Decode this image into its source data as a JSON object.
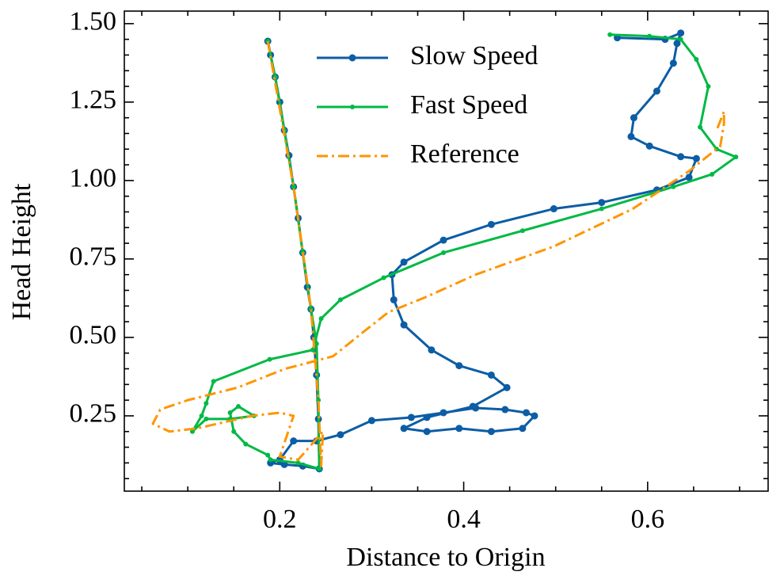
{
  "chart_data": {
    "type": "line",
    "xlabel": "Distance to Origin",
    "ylabel": "Head Height",
    "xlim": [
      0.031,
      0.731
    ],
    "ylim": [
      0.01,
      1.54
    ],
    "xticks": [
      0.2,
      0.4,
      0.6
    ],
    "yticks": [
      0.25,
      {
        "value": 0.5,
        "label": "0.50"
      },
      0.75,
      {
        "value": 1.0,
        "label": "1.00"
      },
      1.25,
      {
        "value": 1.5,
        "label": "1.50"
      }
    ],
    "xminorticks": [
      0.05,
      0.1,
      0.15,
      0.25,
      0.3,
      0.35,
      0.45,
      0.5,
      0.55,
      0.65,
      0.7
    ],
    "yminorticks": [
      0.05,
      0.1,
      0.15,
      0.2,
      0.3,
      0.35,
      0.4,
      0.45,
      0.55,
      0.6,
      0.65,
      0.7,
      0.8,
      0.85,
      0.9,
      0.95,
      1.05,
      1.1,
      1.15,
      1.2,
      1.3,
      1.35,
      1.4,
      1.45
    ],
    "legend": "upper center",
    "series": [
      {
        "name": "Slow Speed",
        "color": "#0c5da5",
        "marker": "circle",
        "x": [
          0.187,
          0.19,
          0.195,
          0.2,
          0.205,
          0.21,
          0.215,
          0.22,
          0.225,
          0.23,
          0.234,
          0.237,
          0.24,
          0.242,
          0.243,
          0.225,
          0.205,
          0.19,
          0.2,
          0.215,
          0.24,
          0.266,
          0.3,
          0.343,
          0.378,
          0.413,
          0.445,
          0.468,
          0.477,
          0.464,
          0.43,
          0.395,
          0.36,
          0.335,
          0.36,
          0.41,
          0.447,
          0.43,
          0.395,
          0.365,
          0.335,
          0.324,
          0.322,
          0.335,
          0.378,
          0.43,
          0.498,
          0.55,
          0.61,
          0.645,
          0.653,
          0.636,
          0.602,
          0.582,
          0.585,
          0.61,
          0.628,
          0.632,
          0.636,
          0.619,
          0.567
        ],
        "values": [
          1.444,
          1.4,
          1.33,
          1.25,
          1.16,
          1.08,
          0.98,
          0.88,
          0.77,
          0.66,
          0.59,
          0.5,
          0.38,
          0.24,
          0.081,
          0.09,
          0.095,
          0.1,
          0.11,
          0.17,
          0.17,
          0.19,
          0.235,
          0.245,
          0.26,
          0.275,
          0.27,
          0.26,
          0.25,
          0.21,
          0.2,
          0.21,
          0.2,
          0.21,
          0.245,
          0.28,
          0.34,
          0.38,
          0.41,
          0.46,
          0.54,
          0.62,
          0.7,
          0.74,
          0.81,
          0.86,
          0.91,
          0.93,
          0.97,
          1.01,
          1.07,
          1.076,
          1.11,
          1.14,
          1.2,
          1.285,
          1.374,
          1.437,
          1.47,
          1.45,
          1.455
        ]
      },
      {
        "name": "Fast Speed",
        "color": "#00b945",
        "marker": "circle",
        "x": [
          0.187,
          0.195,
          0.205,
          0.215,
          0.225,
          0.234,
          0.24,
          0.242,
          0.243,
          0.22,
          0.19,
          0.187,
          0.163,
          0.15,
          0.146,
          0.155,
          0.172,
          0.146,
          0.12,
          0.105,
          0.115,
          0.12,
          0.128,
          0.189,
          0.236,
          0.245,
          0.266,
          0.313,
          0.378,
          0.464,
          0.55,
          0.628,
          0.67,
          0.696,
          0.675,
          0.657,
          0.666,
          0.653,
          0.636,
          0.602,
          0.559
        ],
        "values": [
          1.444,
          1.33,
          1.16,
          0.98,
          0.77,
          0.59,
          0.48,
          0.3,
          0.081,
          0.1,
          0.11,
          0.125,
          0.16,
          0.2,
          0.26,
          0.28,
          0.25,
          0.24,
          0.24,
          0.2,
          0.25,
          0.29,
          0.36,
          0.43,
          0.46,
          0.56,
          0.62,
          0.69,
          0.77,
          0.84,
          0.91,
          0.98,
          1.02,
          1.075,
          1.1,
          1.17,
          1.3,
          1.386,
          1.45,
          1.46,
          1.465
        ]
      },
      {
        "name": "Reference",
        "color": "#ff9500",
        "dash": "dashdot",
        "x": [
          0.187,
          0.215,
          0.234,
          0.242,
          0.245,
          0.247,
          0.22,
          0.2,
          0.215,
          0.2,
          0.17,
          0.14,
          0.11,
          0.08,
          0.062,
          0.07,
          0.1,
          0.154,
          0.206,
          0.258,
          0.292,
          0.318,
          0.36,
          0.413,
          0.498,
          0.584,
          0.645,
          0.679,
          0.683,
          0.683,
          0.675
        ],
        "values": [
          1.444,
          0.98,
          0.59,
          0.3,
          0.09,
          0.2,
          0.11,
          0.12,
          0.25,
          0.26,
          0.25,
          0.23,
          0.21,
          0.2,
          0.225,
          0.27,
          0.3,
          0.34,
          0.4,
          0.44,
          0.52,
          0.58,
          0.63,
          0.7,
          0.79,
          0.91,
          1.03,
          1.11,
          1.18,
          1.22,
          1.16
        ]
      }
    ]
  }
}
